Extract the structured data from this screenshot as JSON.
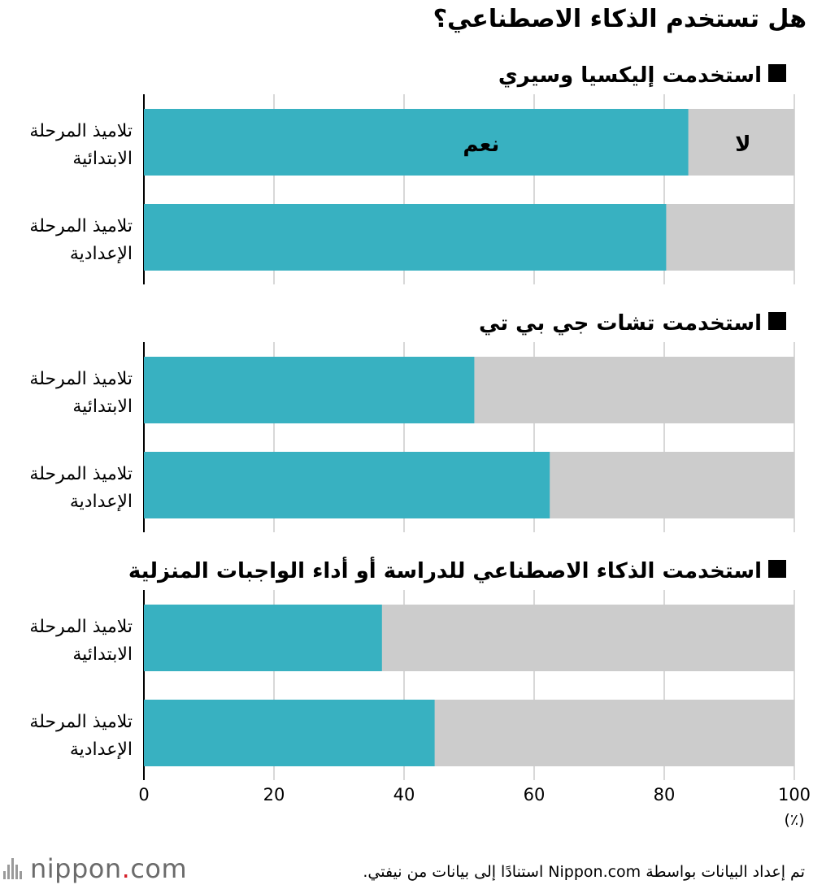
{
  "title": "هل تستخدم الذكاء الاصطناعي؟",
  "chart_data": {
    "type": "bar",
    "orientation": "horizontal-stacked",
    "xlim": [
      0,
      100
    ],
    "xticks": [
      "0",
      "20",
      "40",
      "60",
      "80",
      "100"
    ],
    "unit_label": "(٪)",
    "grid": true,
    "categories": [
      "تلاميذ المرحلة الابتدائية",
      "تلاميذ المرحلة الإعدادية"
    ],
    "series": [
      {
        "name": "نعم",
        "color": "#38b1c1"
      },
      {
        "name": "لا",
        "color": "#cccccc"
      }
    ],
    "panels": [
      {
        "title": "استخدمت إليكسيا وسيري",
        "values": [
          83.7,
          80.3
        ],
        "show_series_labels": true
      },
      {
        "title": "استخدمت تشات جي بي تي",
        "values": [
          50.8,
          62.4
        ],
        "show_series_labels": false
      },
      {
        "title": "استخدمت الذكاء الاصطناعي للدراسة أو أداء الواجبات المنزلية",
        "values": [
          36.6,
          44.7
        ],
        "show_series_labels": false
      }
    ]
  },
  "footer": {
    "source": "تم إعداد البيانات بواسطة Nippon.com استنادًا إلى بيانات من نيفتي.",
    "logo_text": "nippon",
    "logo_dot": ".",
    "logo_suffix": "com"
  }
}
